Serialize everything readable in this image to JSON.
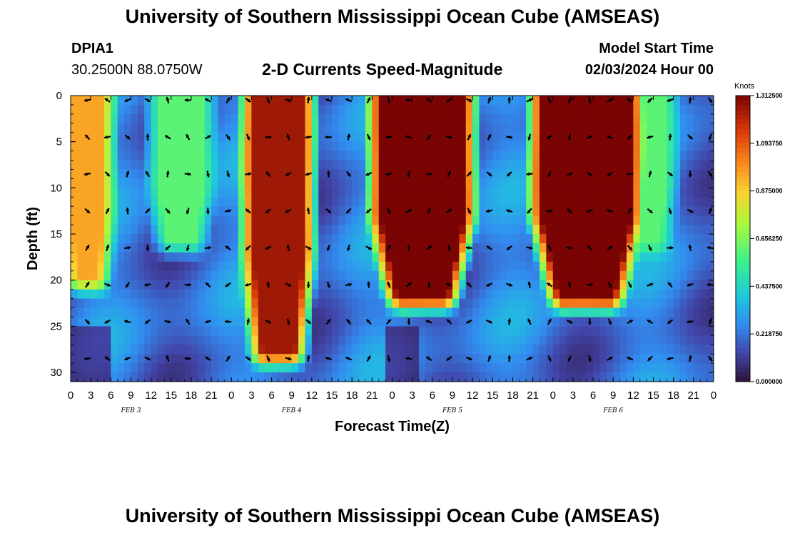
{
  "header": {
    "title": "University of Southern Mississippi Ocean Cube (AMSEAS)",
    "station_id": "DPIA1",
    "station_coords": "30.2500N  88.0750W",
    "plot_title": "2-D Currents Speed-Magnitude",
    "model_start_label": "Model Start Time",
    "model_start_value": "02/03/2024 Hour 00"
  },
  "footer": {
    "title": "University of Southern Mississippi Ocean Cube (AMSEAS)"
  },
  "chart_data": {
    "type": "heatmap",
    "title": "2-D Currents Speed-Magnitude",
    "xlabel": "Forecast Time(Z)",
    "ylabel": "Depth (ft)",
    "x_ticks": [
      "0",
      "3",
      "6",
      "9",
      "12",
      "15",
      "18",
      "21",
      "0",
      "3",
      "6",
      "9",
      "12",
      "15",
      "18",
      "21",
      "0",
      "3",
      "6",
      "9",
      "12",
      "15",
      "18",
      "21",
      "0",
      "3",
      "6",
      "9",
      "12",
      "15",
      "18",
      "21",
      "0"
    ],
    "day_labels": [
      "FEB 3",
      "FEB 4",
      "FEB 5",
      "FEB 6"
    ],
    "y_ticks": [
      "0",
      "5",
      "10",
      "15",
      "20",
      "25",
      "30"
    ],
    "xlim_hours": [
      0,
      96
    ],
    "ylim_ft": [
      0,
      31
    ],
    "colorbar": {
      "unit": "Knots",
      "min": 0.0,
      "max": 1.3125,
      "labels": [
        "1.312500",
        "1.093750",
        "0.875000",
        "0.656250",
        "0.437500",
        "0.218750",
        "0.000000"
      ]
    },
    "arrow_depths_ft": [
      0.5,
      4.5,
      8.5,
      12.5,
      16.5,
      20.5,
      24.5,
      28.5
    ],
    "arrow_times_hours": [
      2.5,
      5.5,
      8.5,
      11.5,
      14.5,
      17.5,
      20.5,
      23.5,
      26.5,
      29.5,
      32.5,
      35.5,
      38.5,
      41.5,
      44.5,
      47.5,
      50.5,
      53.5,
      56.5,
      59.5,
      62.5,
      65.5,
      68.5,
      71.5,
      74.5,
      77.5,
      80.5,
      83.5,
      86.5,
      89.5,
      92.5,
      95.5
    ],
    "high_speed_zones": [
      {
        "t_start": 1,
        "t_end": 4,
        "depth_max": 20,
        "speed": 0.95
      },
      {
        "t_start": 28,
        "t_end": 34,
        "depth_max": 28,
        "speed": 1.25
      },
      {
        "t_start": 47,
        "t_end": 58,
        "depth_max": 22,
        "speed": 1.3125
      },
      {
        "t_start": 71,
        "t_end": 83,
        "depth_max": 22,
        "speed": 1.3125
      },
      {
        "t_start": 14,
        "t_end": 19,
        "depth_max": 16,
        "speed": 0.6
      },
      {
        "t_start": 84,
        "t_end": 88,
        "depth_max": 16,
        "speed": 0.6
      }
    ]
  }
}
